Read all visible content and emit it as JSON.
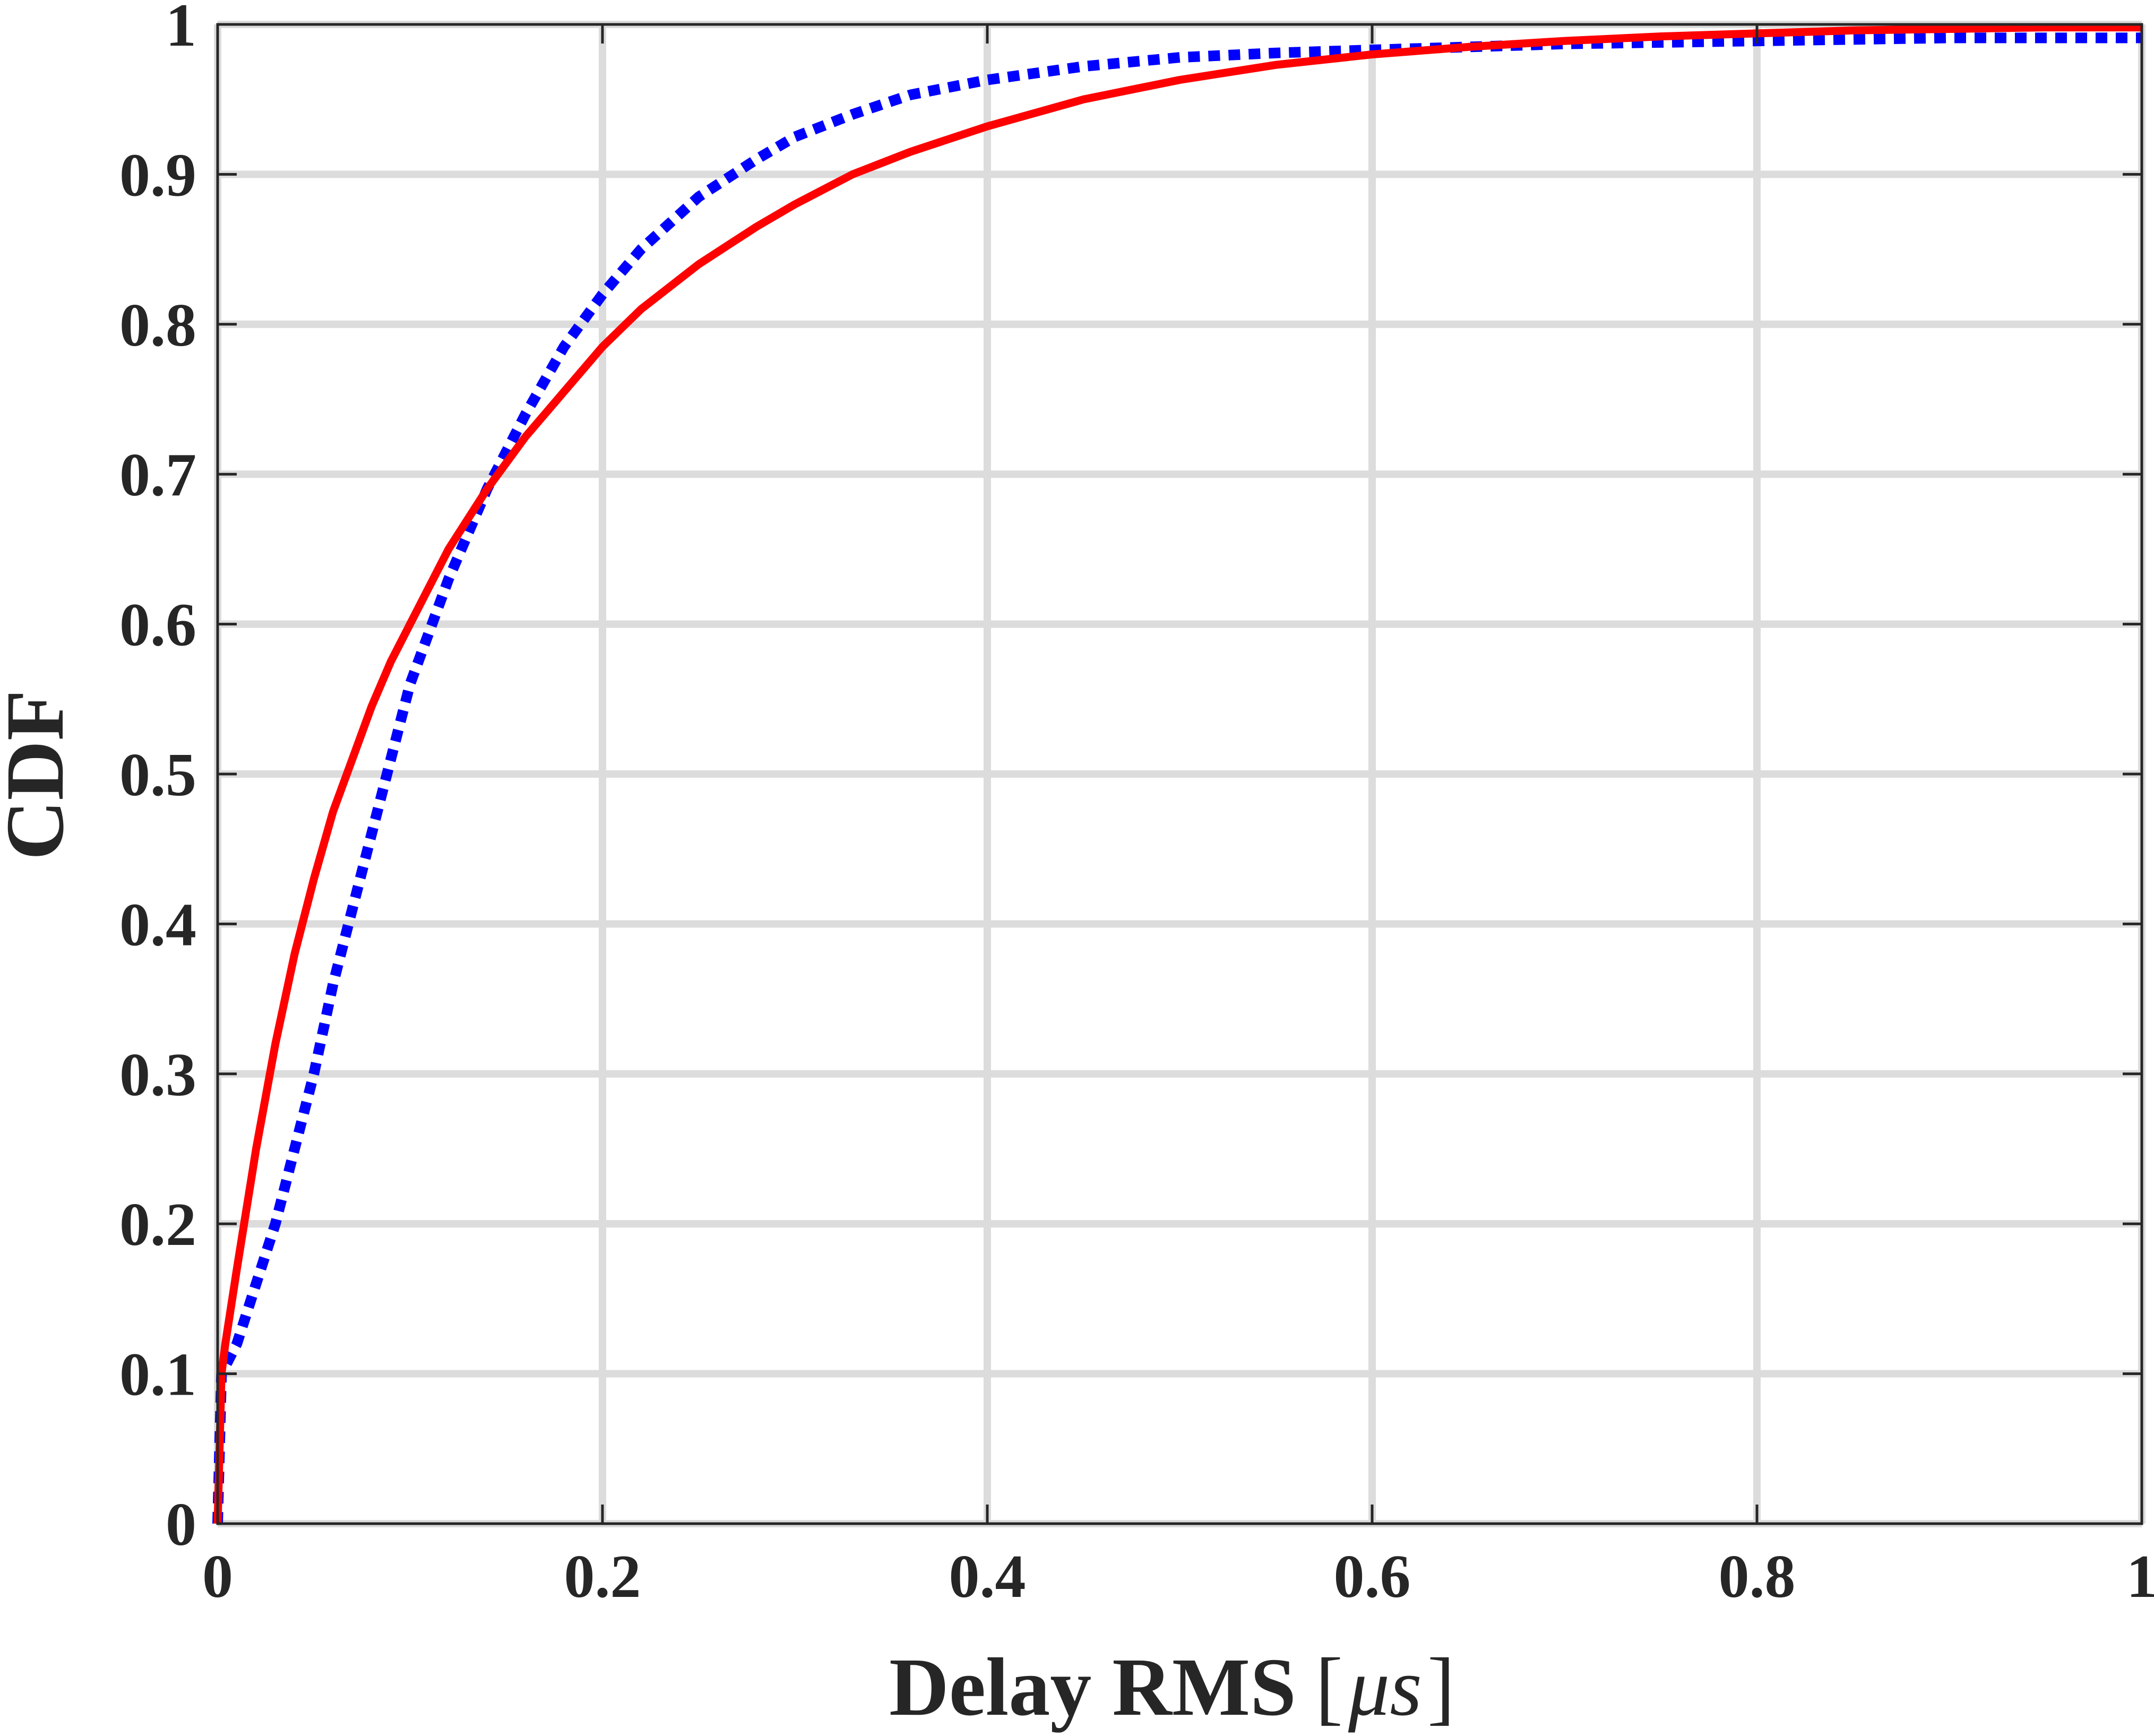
{
  "chart_data": {
    "type": "line",
    "xlabel": "Delay RMS",
    "xlabel_unit_open": "[",
    "xlabel_unit": "μs",
    "xlabel_unit_close": "]",
    "ylabel": "CDF",
    "xlim": [
      0,
      1
    ],
    "ylim": [
      0,
      1
    ],
    "x_ticks": [
      0,
      0.2,
      0.4,
      0.6,
      0.8,
      1
    ],
    "x_tick_labels": [
      "0",
      "0.2",
      "0.4",
      "0.6",
      "0.8",
      "1"
    ],
    "y_ticks": [
      0,
      0.1,
      0.2,
      0.3,
      0.4,
      0.5,
      0.6,
      0.7,
      0.8,
      0.9,
      1
    ],
    "y_tick_labels": [
      "0",
      "0.1",
      "0.2",
      "0.3",
      "0.4",
      "0.5",
      "0.6",
      "0.7",
      "0.8",
      "0.9",
      "1"
    ],
    "grid": true,
    "legend": false,
    "series": [
      {
        "color": "#ff0000",
        "style": "solid",
        "x": [
          0,
          0.002,
          0.004,
          0.01,
          0.02,
          0.03,
          0.04,
          0.05,
          0.06,
          0.07,
          0.08,
          0.09,
          0.1,
          0.12,
          0.14,
          0.16,
          0.18,
          0.2,
          0.22,
          0.25,
          0.28,
          0.3,
          0.33,
          0.36,
          0.4,
          0.45,
          0.5,
          0.55,
          0.6,
          0.65,
          0.7,
          0.75,
          0.8,
          0.85,
          0.9,
          0.95,
          1.0
        ],
        "y": [
          0,
          0.1,
          0.12,
          0.17,
          0.25,
          0.32,
          0.38,
          0.43,
          0.475,
          0.51,
          0.545,
          0.575,
          0.6,
          0.65,
          0.69,
          0.725,
          0.755,
          0.785,
          0.81,
          0.84,
          0.865,
          0.88,
          0.9,
          0.915,
          0.932,
          0.95,
          0.963,
          0.973,
          0.98,
          0.985,
          0.989,
          0.992,
          0.994,
          0.996,
          0.997,
          0.998,
          0.998
        ]
      },
      {
        "color": "#0000ff",
        "style": "dotted",
        "x": [
          0,
          0.002,
          0.004,
          0.01,
          0.02,
          0.03,
          0.04,
          0.05,
          0.06,
          0.07,
          0.08,
          0.09,
          0.1,
          0.12,
          0.14,
          0.16,
          0.18,
          0.2,
          0.22,
          0.25,
          0.28,
          0.3,
          0.33,
          0.36,
          0.4,
          0.45,
          0.5,
          0.55,
          0.6,
          0.65,
          0.7,
          0.75,
          0.8,
          0.85,
          0.9,
          0.95,
          1.0
        ],
        "y": [
          0,
          0.1,
          0.105,
          0.12,
          0.16,
          0.2,
          0.25,
          0.3,
          0.36,
          0.41,
          0.46,
          0.51,
          0.56,
          0.63,
          0.69,
          0.74,
          0.785,
          0.82,
          0.85,
          0.885,
          0.91,
          0.925,
          0.94,
          0.953,
          0.963,
          0.972,
          0.978,
          0.981,
          0.983,
          0.985,
          0.987,
          0.988,
          0.989,
          0.99,
          0.991,
          0.991,
          0.991
        ]
      }
    ]
  }
}
